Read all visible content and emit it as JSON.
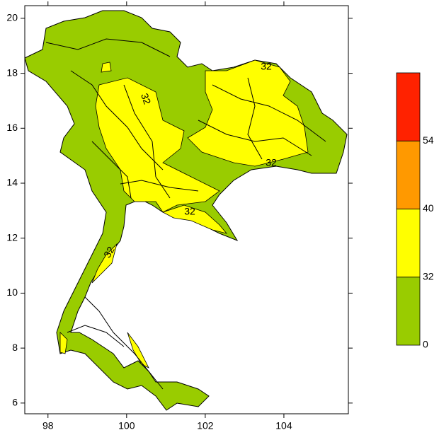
{
  "chart_data": {
    "type": "map",
    "xlim": [
      97.41,
      105.64
    ],
    "ylim": [
      5.61,
      20.46
    ],
    "xticks": [
      98,
      100,
      102,
      104
    ],
    "yticks": [
      6,
      8,
      10,
      12,
      14,
      16,
      18,
      20
    ],
    "levels": [
      0,
      32,
      40,
      54
    ],
    "colors": [
      "#99cc00",
      "#ffff00",
      "#ff9900",
      "#ff2200"
    ],
    "contour_labels": [
      "32",
      "32",
      "32",
      "32",
      "32"
    ]
  }
}
